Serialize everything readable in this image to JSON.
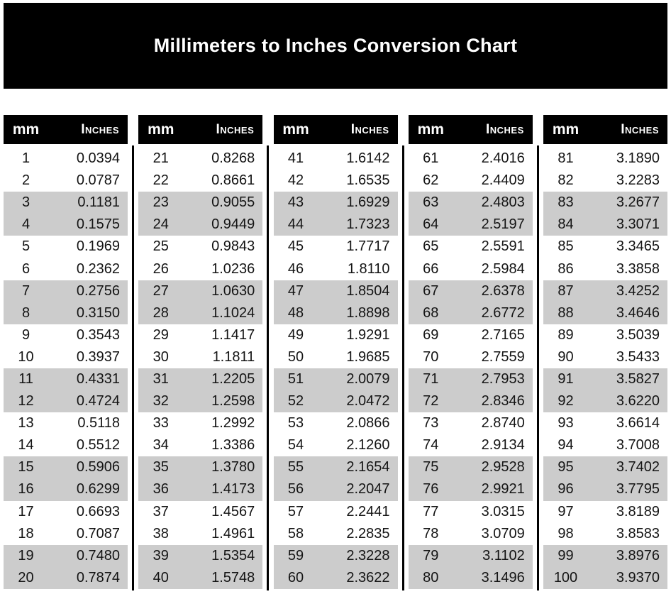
{
  "title": "Millimeters to Inches Conversion Chart",
  "colors": {
    "header_bg": "#000000",
    "header_text": "#ffffff",
    "stripe": "#cccccc",
    "body_text": "#141414"
  },
  "tables": [
    {
      "header": {
        "mm": "mm",
        "inches": "Inches"
      },
      "rows": [
        [
          "1",
          "0.0394"
        ],
        [
          "2",
          "0.0787"
        ],
        [
          "3",
          "0.1181"
        ],
        [
          "4",
          "0.1575"
        ],
        [
          "5",
          "0.1969"
        ],
        [
          "6",
          "0.2362"
        ],
        [
          "7",
          "0.2756"
        ],
        [
          "8",
          "0.3150"
        ],
        [
          "9",
          "0.3543"
        ],
        [
          "10",
          "0.3937"
        ],
        [
          "11",
          "0.4331"
        ],
        [
          "12",
          "0.4724"
        ],
        [
          "13",
          "0.5118"
        ],
        [
          "14",
          "0.5512"
        ],
        [
          "15",
          "0.5906"
        ],
        [
          "16",
          "0.6299"
        ],
        [
          "17",
          "0.6693"
        ],
        [
          "18",
          "0.7087"
        ],
        [
          "19",
          "0.7480"
        ],
        [
          "20",
          "0.7874"
        ]
      ]
    },
    {
      "header": {
        "mm": "mm",
        "inches": "Inches"
      },
      "rows": [
        [
          "21",
          "0.8268"
        ],
        [
          "22",
          "0.8661"
        ],
        [
          "23",
          "0.9055"
        ],
        [
          "24",
          "0.9449"
        ],
        [
          "25",
          "0.9843"
        ],
        [
          "26",
          "1.0236"
        ],
        [
          "27",
          "1.0630"
        ],
        [
          "28",
          "1.1024"
        ],
        [
          "29",
          "1.1417"
        ],
        [
          "30",
          "1.1811"
        ],
        [
          "31",
          "1.2205"
        ],
        [
          "32",
          "1.2598"
        ],
        [
          "33",
          "1.2992"
        ],
        [
          "34",
          "1.3386"
        ],
        [
          "35",
          "1.3780"
        ],
        [
          "36",
          "1.4173"
        ],
        [
          "37",
          "1.4567"
        ],
        [
          "38",
          "1.4961"
        ],
        [
          "39",
          "1.5354"
        ],
        [
          "40",
          "1.5748"
        ]
      ]
    },
    {
      "header": {
        "mm": "mm",
        "inches": "Inches"
      },
      "rows": [
        [
          "41",
          "1.6142"
        ],
        [
          "42",
          "1.6535"
        ],
        [
          "43",
          "1.6929"
        ],
        [
          "44",
          "1.7323"
        ],
        [
          "45",
          "1.7717"
        ],
        [
          "46",
          "1.8110"
        ],
        [
          "47",
          "1.8504"
        ],
        [
          "48",
          "1.8898"
        ],
        [
          "49",
          "1.9291"
        ],
        [
          "50",
          "1.9685"
        ],
        [
          "51",
          "2.0079"
        ],
        [
          "52",
          "2.0472"
        ],
        [
          "53",
          "2.0866"
        ],
        [
          "54",
          "2.1260"
        ],
        [
          "55",
          "2.1654"
        ],
        [
          "56",
          "2.2047"
        ],
        [
          "57",
          "2.2441"
        ],
        [
          "58",
          "2.2835"
        ],
        [
          "59",
          "2.3228"
        ],
        [
          "60",
          "2.3622"
        ]
      ]
    },
    {
      "header": {
        "mm": "mm",
        "inches": "Inches"
      },
      "rows": [
        [
          "61",
          "2.4016"
        ],
        [
          "62",
          "2.4409"
        ],
        [
          "63",
          "2.4803"
        ],
        [
          "64",
          "2.5197"
        ],
        [
          "65",
          "2.5591"
        ],
        [
          "66",
          "2.5984"
        ],
        [
          "67",
          "2.6378"
        ],
        [
          "68",
          "2.6772"
        ],
        [
          "69",
          "2.7165"
        ],
        [
          "70",
          "2.7559"
        ],
        [
          "71",
          "2.7953"
        ],
        [
          "72",
          "2.8346"
        ],
        [
          "73",
          "2.8740"
        ],
        [
          "74",
          "2.9134"
        ],
        [
          "75",
          "2.9528"
        ],
        [
          "76",
          "2.9921"
        ],
        [
          "77",
          "3.0315"
        ],
        [
          "78",
          "3.0709"
        ],
        [
          "79",
          "3.1102"
        ],
        [
          "80",
          "3.1496"
        ]
      ]
    },
    {
      "header": {
        "mm": "mm",
        "inches": "Inches"
      },
      "rows": [
        [
          "81",
          "3.1890"
        ],
        [
          "82",
          "3.2283"
        ],
        [
          "83",
          "3.2677"
        ],
        [
          "84",
          "3.3071"
        ],
        [
          "85",
          "3.3465"
        ],
        [
          "86",
          "3.3858"
        ],
        [
          "87",
          "3.4252"
        ],
        [
          "88",
          "3.4646"
        ],
        [
          "89",
          "3.5039"
        ],
        [
          "90",
          "3.5433"
        ],
        [
          "91",
          "3.5827"
        ],
        [
          "92",
          "3.6220"
        ],
        [
          "93",
          "3.6614"
        ],
        [
          "94",
          "3.7008"
        ],
        [
          "95",
          "3.7402"
        ],
        [
          "96",
          "3.7795"
        ],
        [
          "97",
          "3.8189"
        ],
        [
          "98",
          "3.8583"
        ],
        [
          "99",
          "3.8976"
        ],
        [
          "100",
          "3.9370"
        ]
      ]
    }
  ]
}
